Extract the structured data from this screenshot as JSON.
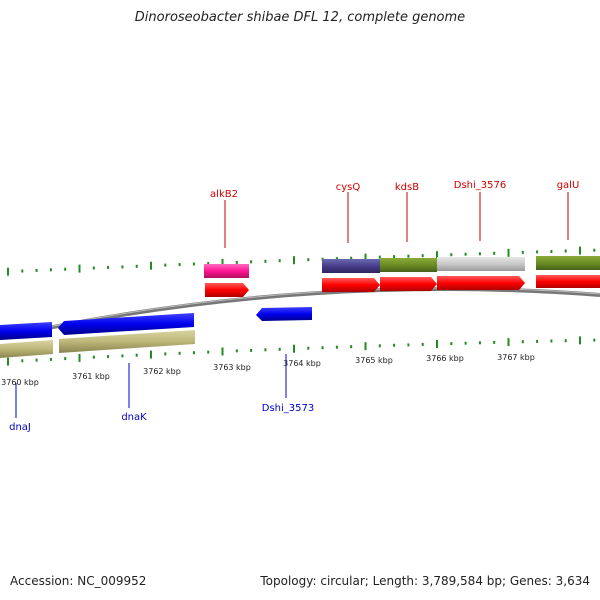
{
  "title": "Dinoroseobacter shibae DFL 12, complete genome",
  "footer": {
    "accession": "Accession: NC_009952",
    "summary": "Topology: circular; Length: 3,789,584 bp; Genes: 3,634"
  },
  "ticks": [
    "3760 kbp",
    "3761 kbp",
    "3762 kbp",
    "3763 kbp",
    "3764 kbp",
    "3765 kbp",
    "3766 kbp",
    "3767 kbp"
  ],
  "genes_top": [
    "alkB2",
    "cysQ",
    "kdsB",
    "Dshi_3576",
    "galU"
  ],
  "genes_bottom": [
    "dnaJ",
    "dnaK",
    "Dshi_3573"
  ],
  "colors": {
    "forward_label": "#cc0000",
    "reverse_label": "#0000cc",
    "cds": "#ff0000",
    "reverse_cds": "#0000ee",
    "tick": "#228b22"
  }
}
